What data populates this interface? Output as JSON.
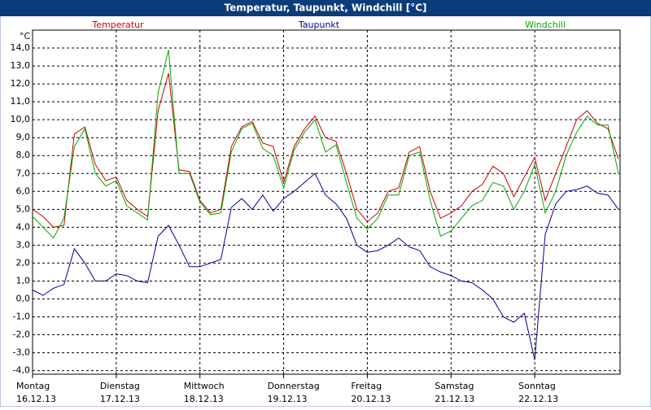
{
  "chart_data": {
    "type": "line",
    "title": "Temperatur, Taupunkt, Windchill [°C]",
    "y_unit": "°C",
    "xlim": [
      0,
      7
    ],
    "xticks": [
      {
        "value": 0,
        "label": "Montag"
      },
      {
        "value": 1,
        "label": "Dienstag"
      },
      {
        "value": 2,
        "label": "Mittwoch"
      },
      {
        "value": 3,
        "label": "Donnerstag"
      },
      {
        "value": 4,
        "label": "Freitag"
      },
      {
        "value": 5,
        "label": "Samstag"
      },
      {
        "value": 6,
        "label": "Sonntag"
      }
    ],
    "xtick_dates": [
      "16.12.13",
      "17.12.13",
      "18.12.13",
      "19.12.13",
      "20.12.13",
      "21.12.13",
      "22.12.13"
    ],
    "ylim": [
      -4.2,
      15
    ],
    "yticks": [
      {
        "value": -4,
        "label": "-4,0"
      },
      {
        "value": -3,
        "label": "-3,0"
      },
      {
        "value": -2,
        "label": "-2,0"
      },
      {
        "value": -1,
        "label": "-1,0"
      },
      {
        "value": 0,
        "label": "0,0"
      },
      {
        "value": 1,
        "label": "1,0"
      },
      {
        "value": 2,
        "label": "2,0"
      },
      {
        "value": 3,
        "label": "3,0"
      },
      {
        "value": 4,
        "label": "4,0"
      },
      {
        "value": 5,
        "label": "5,0"
      },
      {
        "value": 6,
        "label": "6,0"
      },
      {
        "value": 7,
        "label": "7,0"
      },
      {
        "value": 8,
        "label": "8,0"
      },
      {
        "value": 9,
        "label": "9,0"
      },
      {
        "value": 10,
        "label": "10,0"
      },
      {
        "value": 11,
        "label": "11,0"
      },
      {
        "value": 12,
        "label": "12,0"
      },
      {
        "value": 13,
        "label": "13,0"
      },
      {
        "value": 14,
        "label": "14,0"
      }
    ],
    "grid": true,
    "x": [
      0,
      0.125,
      0.25,
      0.375,
      0.5,
      0.625,
      0.75,
      0.875,
      1,
      1.125,
      1.25,
      1.375,
      1.5,
      1.625,
      1.75,
      1.875,
      2,
      2.125,
      2.25,
      2.375,
      2.5,
      2.625,
      2.75,
      2.875,
      3,
      3.125,
      3.25,
      3.375,
      3.5,
      3.625,
      3.75,
      3.875,
      4,
      4.125,
      4.25,
      4.375,
      4.5,
      4.625,
      4.75,
      4.875,
      5,
      5.125,
      5.25,
      5.375,
      5.5,
      5.625,
      5.75,
      5.875,
      6,
      6.125,
      6.25,
      6.375,
      6.5,
      6.625,
      6.75,
      6.875,
      7
    ],
    "series": [
      {
        "name": "Temperatur",
        "color": "#cc0000",
        "values": [
          5.0,
          4.6,
          4.0,
          4.1,
          9.2,
          9.6,
          7.5,
          6.6,
          6.8,
          5.5,
          5.0,
          4.6,
          10.5,
          12.6,
          7.2,
          7.1,
          5.5,
          4.8,
          5.0,
          8.5,
          9.6,
          9.9,
          8.7,
          8.5,
          6.5,
          8.5,
          9.5,
          10.2,
          9.0,
          8.8,
          7.0,
          5.0,
          4.3,
          4.8,
          6.0,
          6.2,
          8.2,
          8.5,
          6.0,
          4.5,
          4.8,
          5.2,
          6.0,
          6.4,
          7.4,
          7.0,
          5.7,
          6.8,
          7.9,
          5.5,
          7.0,
          8.5,
          10.0,
          10.5,
          9.8,
          9.5,
          7.8
        ]
      },
      {
        "name": "Taupunkt",
        "color": "#000099",
        "values": [
          0.5,
          0.2,
          0.6,
          0.8,
          2.8,
          2.0,
          1.0,
          1.0,
          1.4,
          1.3,
          1.0,
          0.9,
          3.5,
          4.1,
          3.0,
          1.8,
          1.8,
          2.0,
          2.2,
          5.1,
          5.6,
          5.0,
          5.8,
          4.9,
          5.6,
          6.0,
          6.5,
          7.0,
          5.8,
          5.3,
          4.5,
          3.0,
          2.6,
          2.7,
          3.0,
          3.4,
          2.9,
          2.7,
          1.8,
          1.5,
          1.3,
          1.0,
          0.9,
          0.5,
          0.0,
          -1.0,
          -1.3,
          -0.8,
          -3.4,
          3.6,
          5.3,
          6.0,
          6.1,
          6.3,
          5.9,
          5.8,
          5.0
        ]
      },
      {
        "name": "Windchill",
        "color": "#00aa00",
        "values": [
          4.6,
          4.0,
          3.4,
          4.5,
          8.5,
          9.5,
          7.0,
          6.3,
          6.6,
          5.2,
          4.8,
          4.4,
          11.5,
          13.9,
          7.0,
          7.0,
          5.4,
          4.7,
          4.8,
          8.2,
          9.5,
          9.8,
          8.4,
          8.0,
          6.2,
          8.3,
          9.3,
          10.0,
          8.2,
          8.6,
          6.5,
          4.5,
          3.9,
          4.5,
          5.8,
          5.8,
          8.0,
          8.2,
          5.5,
          3.5,
          3.8,
          4.5,
          5.2,
          5.5,
          6.5,
          6.3,
          5.0,
          6.0,
          7.5,
          4.8,
          6.0,
          8.0,
          9.3,
          10.2,
          9.7,
          9.7,
          7.0
        ]
      }
    ]
  }
}
